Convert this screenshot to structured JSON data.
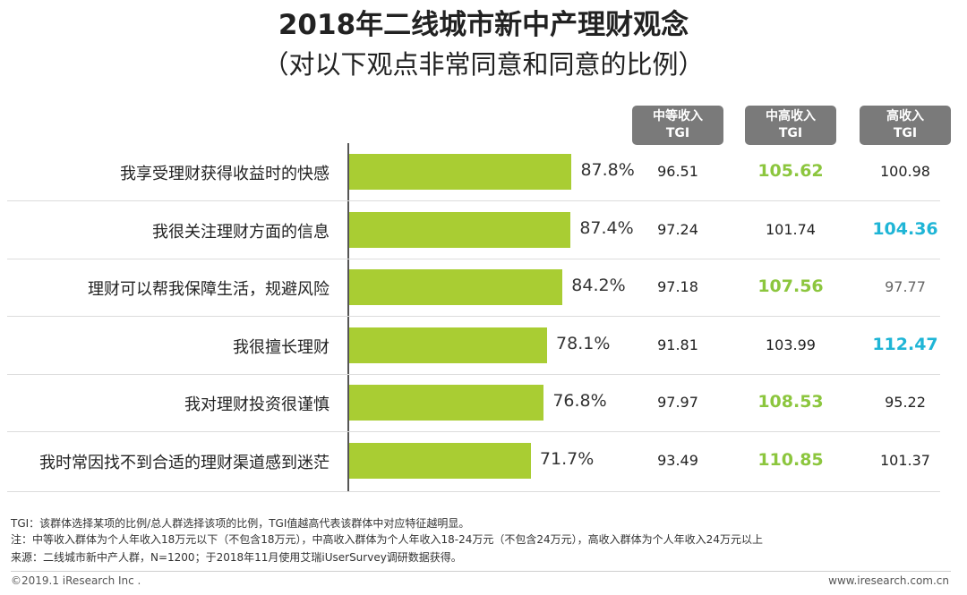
{
  "chart_data": {
    "type": "bar",
    "orientation": "horizontal",
    "title": "2018年二线城市新中产理财观念",
    "subtitle": "（对以下观点非常同意和同意的比例）",
    "categories": [
      "我享受理财获得收益时的快感",
      "我很关注理财方面的信息",
      "理财可以帮我保障生活，规避风险",
      "我很擅长理财",
      "我对理财投资很谨慎",
      "我时常因找不到合适的理财渠道感到迷茫"
    ],
    "values": [
      87.8,
      87.4,
      84.2,
      78.1,
      76.8,
      71.7
    ],
    "value_labels": [
      "87.8%",
      "87.4%",
      "84.2%",
      "78.1%",
      "76.8%",
      "71.7%"
    ],
    "xlim": [
      0,
      100
    ],
    "bar_color": "#a9cd33",
    "tgi_headers": [
      "中等收入\nTGI",
      "中高收入\nTGI",
      "高收入\nTGI"
    ],
    "tgi_header_lines": [
      [
        "中等收入",
        "TGI"
      ],
      [
        "中高收入",
        "TGI"
      ],
      [
        "高收入",
        "TGI"
      ]
    ],
    "tgi_table": [
      [
        "96.51",
        "105.62",
        "100.98"
      ],
      [
        "97.24",
        "101.74",
        "104.36"
      ],
      [
        "97.18",
        "107.56",
        "97.77"
      ],
      [
        "91.81",
        "103.99",
        "112.47"
      ],
      [
        "97.97",
        "108.53",
        "95.22"
      ],
      [
        "93.49",
        "110.85",
        "101.37"
      ]
    ],
    "tgi_styles": [
      [
        "normal",
        "green",
        "normal"
      ],
      [
        "normal",
        "normal",
        "blue"
      ],
      [
        "normal",
        "green",
        "muted"
      ],
      [
        "normal",
        "normal",
        "blue"
      ],
      [
        "normal",
        "green",
        "normal"
      ],
      [
        "normal",
        "green",
        "normal"
      ]
    ],
    "highlight_colors": {
      "green": "#8cc63e",
      "blue": "#1fb5d6"
    }
  },
  "notes": [
    "TGI：该群体选择某项的比例/总人群选择该项的比例，TGI值越高代表该群体中对应特征越明显。",
    "注：中等收入群体为个人年收入18万元以下（不包含18万元），中高收入群体为个人年收入18-24万元（不包含24万元），高收入群体为个人年收入24万元以上",
    "来源：二线城市新中产人群，N=1200；于2018年11月使用艾瑞iUserSurvey调研数据获得。"
  ],
  "footer": {
    "copyright": "©2019.1 iResearch Inc .",
    "website": "www.iresearch.com.cn"
  }
}
